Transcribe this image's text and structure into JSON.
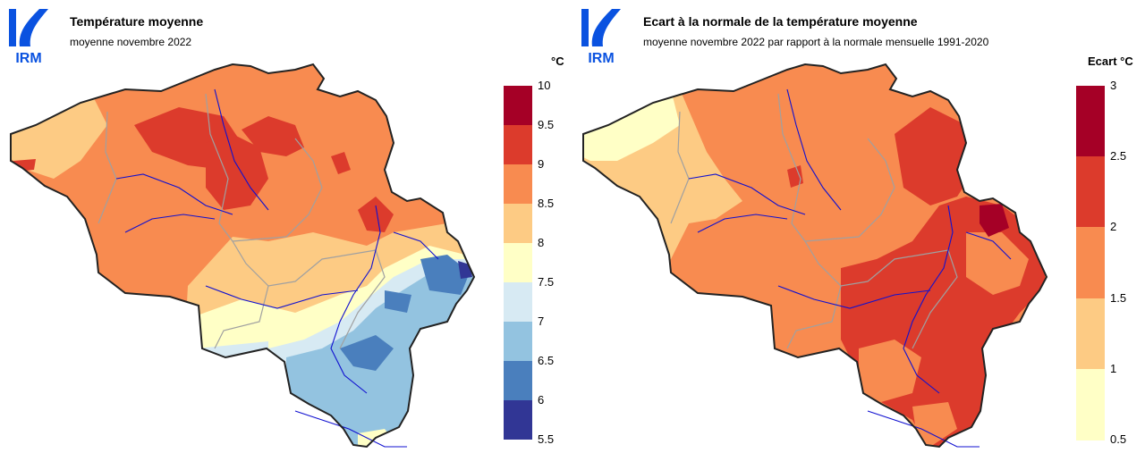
{
  "logo": {
    "text": "IRM",
    "color": "#0a52e0"
  },
  "left_panel": {
    "title": "Température moyenne",
    "subtitle": "moyenne novembre 2022",
    "legend": {
      "unit": "°C",
      "ticks": [
        "10",
        "9.5",
        "9",
        "8.5",
        "8",
        "7.5",
        "7",
        "6.5",
        "6",
        "5.5"
      ],
      "colors": [
        "#a50026",
        "#d73027",
        "#f46d43",
        "#fdae61",
        "#fee090",
        "#ffffbf",
        "#e0f3f8",
        "#abd9e9",
        "#74add1",
        "#4575b4",
        "#313695"
      ],
      "bins": [
        {
          "from": 9.5,
          "to": 10,
          "color": "#a50026"
        },
        {
          "from": 9,
          "to": 9.5,
          "color": "#dc3b2c"
        },
        {
          "from": 8.5,
          "to": 9,
          "color": "#f88b50"
        },
        {
          "from": 8,
          "to": 8.5,
          "color": "#fdcb84"
        },
        {
          "from": 7.5,
          "to": 8,
          "color": "#ffffc6"
        },
        {
          "from": 7,
          "to": 7.5,
          "color": "#d7eaf3"
        },
        {
          "from": 6.5,
          "to": 7,
          "color": "#93c3e0"
        },
        {
          "from": 6,
          "to": 6.5,
          "color": "#4a7fbd"
        },
        {
          "from": 5.5,
          "to": 6,
          "color": "#313695"
        }
      ]
    }
  },
  "right_panel": {
    "title": "Ecart à la normale de la température moyenne",
    "subtitle": "moyenne novembre 2022 par rapport à la normale mensuelle 1991-2020",
    "legend": {
      "unit": "Ecart °C",
      "ticks": [
        "3",
        "2.5",
        "2",
        "1.5",
        "1",
        "0.5"
      ],
      "bins": [
        {
          "from": 2.5,
          "to": 3,
          "color": "#a50026"
        },
        {
          "from": 2,
          "to": 2.5,
          "color": "#dc3b2c"
        },
        {
          "from": 1.5,
          "to": 2,
          "color": "#f88b50"
        },
        {
          "from": 1,
          "to": 1.5,
          "color": "#fdcb84"
        },
        {
          "from": 0.5,
          "to": 1,
          "color": "#ffffc6"
        }
      ]
    }
  },
  "map_colors": {
    "border": "#222222",
    "rivers": "#1010d0",
    "provinces": "#a0a0a0"
  }
}
